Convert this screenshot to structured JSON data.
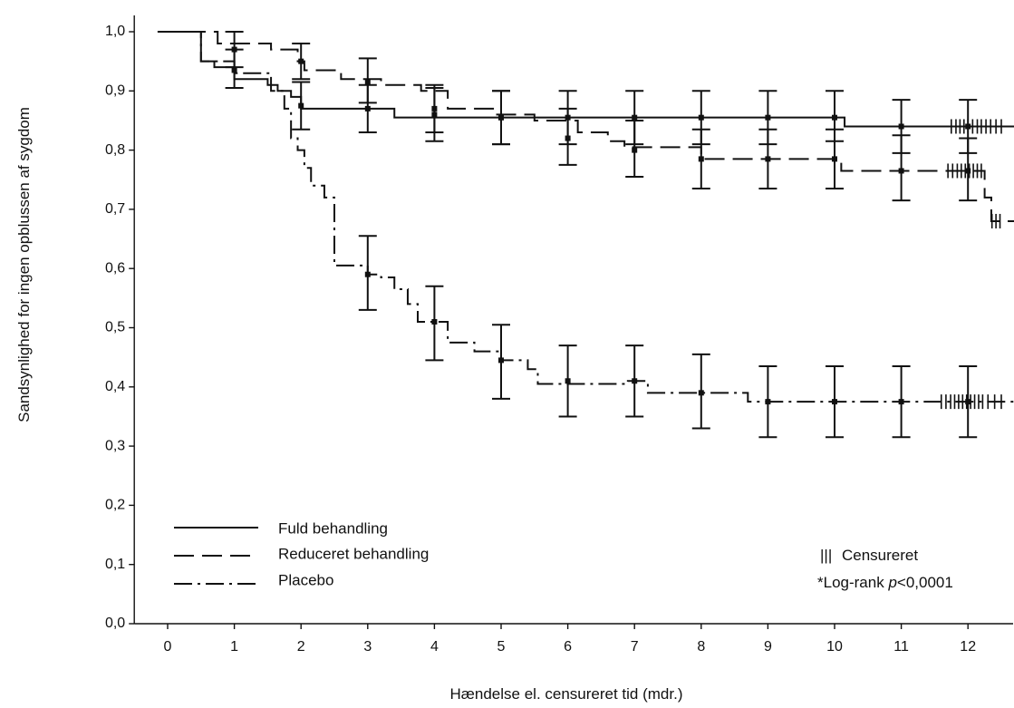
{
  "chart_data": {
    "type": "line",
    "subtype": "kaplan-meier",
    "title": "",
    "xlabel": "Hændelse el. censureret tid (mdr.)",
    "ylabel": "Sandsynlighed for ingen opblussen af sygdom",
    "xlim": [
      -0.5,
      12.7
    ],
    "ylim": [
      0,
      1
    ],
    "xticks": [
      0,
      1,
      2,
      3,
      4,
      5,
      6,
      7,
      8,
      9,
      10,
      11,
      12
    ],
    "yticks": [
      0,
      0.1,
      0.2,
      0.3,
      0.4,
      0.5,
      0.6,
      0.7,
      0.8,
      0.9,
      1.0
    ],
    "ytick_labels": [
      "0,0",
      "0,1",
      "0,2",
      "0,3",
      "0,4",
      "0,5",
      "0,6",
      "0,7",
      "0,8",
      "0,9",
      "1,0"
    ],
    "grid": false,
    "legend_position": "bottom-left",
    "series": [
      {
        "name": "Fuld behandling",
        "line_style": "solid",
        "steps": [
          [
            -0.15,
            1.0
          ],
          [
            0.5,
            0.95
          ],
          [
            0.7,
            0.94
          ],
          [
            1.0,
            0.92
          ],
          [
            1.4,
            0.92
          ],
          [
            1.5,
            0.91
          ],
          [
            1.65,
            0.9
          ],
          [
            1.85,
            0.89
          ],
          [
            2.0,
            0.87
          ],
          [
            3.4,
            0.855
          ],
          [
            5.0,
            0.855
          ],
          [
            10.15,
            0.84
          ],
          [
            12.7,
            0.84
          ]
        ],
        "error_bars": [
          {
            "x": 1.0,
            "y": 0.935,
            "low": 0.905,
            "high": 0.97
          },
          {
            "x": 2.0,
            "y": 0.875,
            "low": 0.835,
            "high": 0.915
          },
          {
            "x": 3.0,
            "y": 0.87,
            "low": 0.83,
            "high": 0.91
          },
          {
            "x": 4.0,
            "y": 0.86,
            "low": 0.815,
            "high": 0.905
          },
          {
            "x": 5.0,
            "y": 0.855,
            "low": 0.81,
            "high": 0.9
          },
          {
            "x": 6.0,
            "y": 0.855,
            "low": 0.81,
            "high": 0.9
          },
          {
            "x": 7.0,
            "y": 0.855,
            "low": 0.81,
            "high": 0.9
          },
          {
            "x": 8.0,
            "y": 0.855,
            "low": 0.81,
            "high": 0.9
          },
          {
            "x": 9.0,
            "y": 0.855,
            "low": 0.81,
            "high": 0.9
          },
          {
            "x": 10.0,
            "y": 0.855,
            "low": 0.815,
            "high": 0.9
          },
          {
            "x": 11.0,
            "y": 0.84,
            "low": 0.795,
            "high": 0.885
          },
          {
            "x": 12.0,
            "y": 0.84,
            "low": 0.795,
            "high": 0.885
          }
        ],
        "censor_marks": [
          11.75,
          11.82,
          11.88,
          11.94,
          12.0,
          12.07,
          12.14,
          12.2,
          12.27,
          12.34,
          12.42,
          12.5
        ]
      },
      {
        "name": "Reduceret behandling",
        "line_style": "dashed",
        "steps": [
          [
            -0.15,
            1.0
          ],
          [
            0.75,
            0.98
          ],
          [
            1.55,
            0.97
          ],
          [
            1.95,
            0.95
          ],
          [
            2.05,
            0.935
          ],
          [
            2.6,
            0.92
          ],
          [
            3.2,
            0.91
          ],
          [
            3.8,
            0.9
          ],
          [
            4.2,
            0.87
          ],
          [
            4.9,
            0.86
          ],
          [
            5.5,
            0.85
          ],
          [
            6.15,
            0.83
          ],
          [
            6.6,
            0.815
          ],
          [
            6.85,
            0.805
          ],
          [
            8.0,
            0.785
          ],
          [
            10.1,
            0.765
          ],
          [
            11.7,
            0.765
          ],
          [
            12.25,
            0.72
          ],
          [
            12.35,
            0.68
          ],
          [
            12.7,
            0.68
          ]
        ],
        "error_bars": [
          {
            "x": 1.0,
            "y": 0.97,
            "low": 0.94,
            "high": 1.0
          },
          {
            "x": 2.0,
            "y": 0.95,
            "low": 0.92,
            "high": 0.98
          },
          {
            "x": 3.0,
            "y": 0.915,
            "low": 0.88,
            "high": 0.955
          },
          {
            "x": 4.0,
            "y": 0.87,
            "low": 0.83,
            "high": 0.91
          },
          {
            "x": 5.0,
            "y": 0.855,
            "low": 0.81,
            "high": 0.9
          },
          {
            "x": 6.0,
            "y": 0.82,
            "low": 0.775,
            "high": 0.87
          },
          {
            "x": 7.0,
            "y": 0.8,
            "low": 0.755,
            "high": 0.85
          },
          {
            "x": 8.0,
            "y": 0.785,
            "low": 0.735,
            "high": 0.835
          },
          {
            "x": 9.0,
            "y": 0.785,
            "low": 0.735,
            "high": 0.835
          },
          {
            "x": 10.0,
            "y": 0.785,
            "low": 0.735,
            "high": 0.835
          },
          {
            "x": 11.0,
            "y": 0.765,
            "low": 0.715,
            "high": 0.825
          },
          {
            "x": 12.0,
            "y": 0.765,
            "low": 0.715,
            "high": 0.82
          }
        ],
        "censor_marks": [
          11.7,
          11.77,
          11.84,
          11.9,
          11.96,
          12.02,
          12.08,
          12.14,
          12.2,
          12.36,
          12.42,
          12.48
        ]
      },
      {
        "name": "Placebo",
        "line_style": "dash-dot",
        "steps": [
          [
            -0.15,
            1.0
          ],
          [
            0.5,
            0.95
          ],
          [
            1.0,
            0.93
          ],
          [
            1.55,
            0.9
          ],
          [
            1.75,
            0.87
          ],
          [
            1.85,
            0.82
          ],
          [
            1.95,
            0.8
          ],
          [
            2.05,
            0.77
          ],
          [
            2.15,
            0.74
          ],
          [
            2.35,
            0.72
          ],
          [
            2.5,
            0.605
          ],
          [
            3.0,
            0.59
          ],
          [
            3.2,
            0.585
          ],
          [
            3.4,
            0.565
          ],
          [
            3.6,
            0.54
          ],
          [
            3.75,
            0.51
          ],
          [
            4.2,
            0.475
          ],
          [
            4.6,
            0.46
          ],
          [
            5.0,
            0.445
          ],
          [
            5.4,
            0.43
          ],
          [
            5.55,
            0.405
          ],
          [
            6.9,
            0.41
          ],
          [
            7.2,
            0.39
          ],
          [
            8.5,
            0.39
          ],
          [
            8.7,
            0.375
          ],
          [
            12.7,
            0.375
          ]
        ],
        "error_bars": [
          {
            "x": 3.0,
            "y": 0.59,
            "low": 0.53,
            "high": 0.655
          },
          {
            "x": 4.0,
            "y": 0.51,
            "low": 0.445,
            "high": 0.57
          },
          {
            "x": 5.0,
            "y": 0.445,
            "low": 0.38,
            "high": 0.505
          },
          {
            "x": 6.0,
            "y": 0.41,
            "low": 0.35,
            "high": 0.47
          },
          {
            "x": 7.0,
            "y": 0.41,
            "low": 0.35,
            "high": 0.47
          },
          {
            "x": 8.0,
            "y": 0.39,
            "low": 0.33,
            "high": 0.455
          },
          {
            "x": 9.0,
            "y": 0.375,
            "low": 0.315,
            "high": 0.435
          },
          {
            "x": 10.0,
            "y": 0.375,
            "low": 0.315,
            "high": 0.435
          },
          {
            "x": 11.0,
            "y": 0.375,
            "low": 0.315,
            "high": 0.435
          },
          {
            "x": 12.0,
            "y": 0.375,
            "low": 0.315,
            "high": 0.435
          }
        ],
        "censor_marks": [
          11.6,
          11.67,
          11.74,
          11.8,
          11.86,
          11.92,
          11.98,
          12.04,
          12.1,
          12.16,
          12.22,
          12.3,
          12.4,
          12.5
        ]
      }
    ],
    "legend": [
      {
        "label": "Fuld behandling",
        "line_style": "solid"
      },
      {
        "label": "Reduceret behandling",
        "line_style": "dashed"
      },
      {
        "label": "Placebo",
        "line_style": "dash-dot"
      }
    ],
    "annotations": {
      "censor_symbol": "|||",
      "censor_label": "Censureret",
      "logrank_prefix": "*Log-rank ",
      "logrank_p": "p",
      "logrank_value": "<0,0001"
    },
    "line_color": "#111111"
  }
}
